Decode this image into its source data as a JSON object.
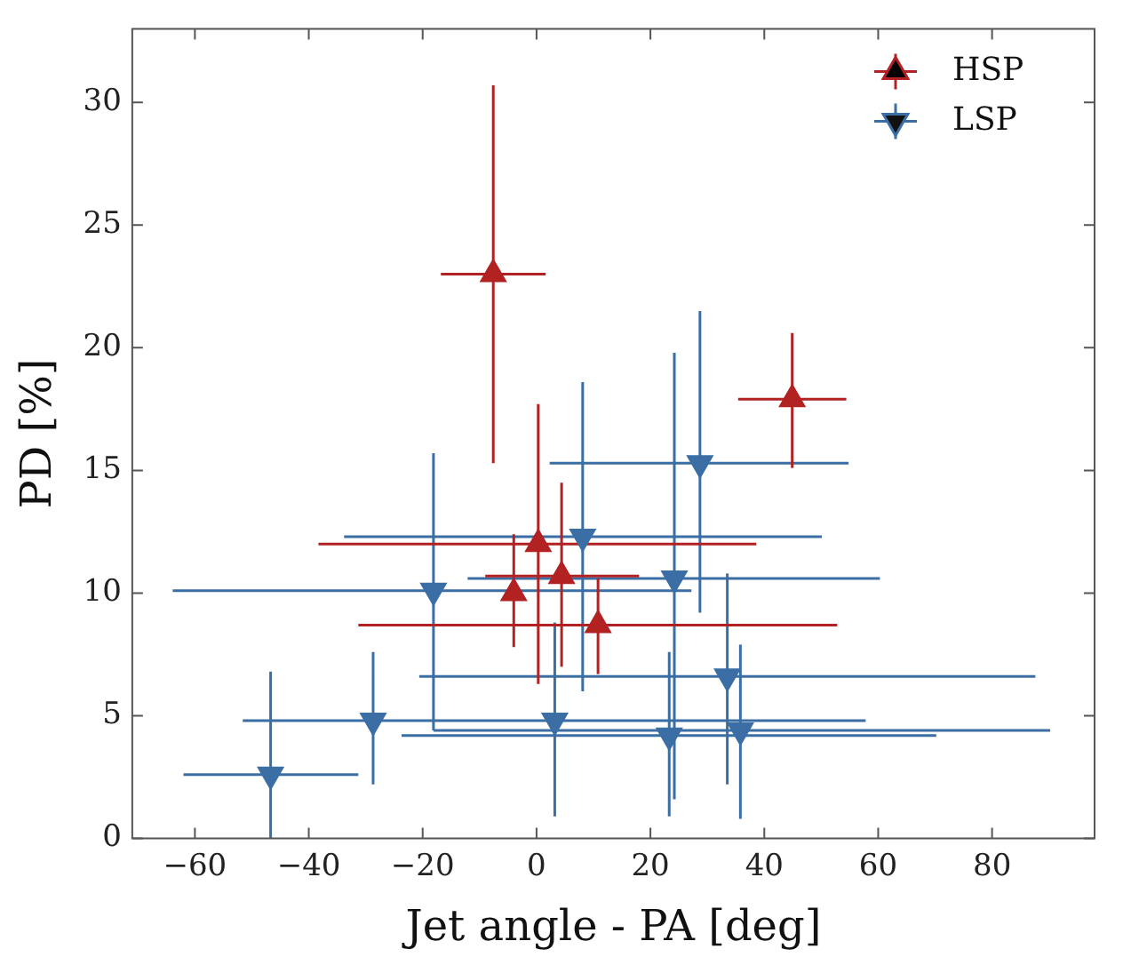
{
  "chart_data": {
    "type": "scatter",
    "xlabel": "Jet angle - PA [deg]",
    "ylabel": "PD [%]",
    "xlim": [
      -71,
      98
    ],
    "ylim": [
      0,
      33
    ],
    "xticks": [
      -60,
      -40,
      -20,
      0,
      20,
      40,
      60,
      80
    ],
    "yticks": [
      0,
      5,
      10,
      15,
      20,
      25,
      30
    ],
    "grid": false,
    "legend": "top right",
    "series": [
      {
        "name": "HSP",
        "color": "#b22222",
        "marker": "triangle",
        "x": [
          -7.6,
          44.9,
          0.3,
          4.4,
          -4.0,
          10.8
        ],
        "values": [
          23.0,
          17.9,
          12.0,
          10.7,
          10.0,
          8.7
        ],
        "errors": [
          [
            15.3,
            30.7
          ],
          [
            15.1,
            20.6
          ],
          [
            6.3,
            17.7
          ],
          [
            7.0,
            14.5
          ],
          [
            7.8,
            12.4
          ],
          [
            6.7,
            10.6
          ]
        ],
        "xerrors": [
          [
            -16.8,
            1.6
          ],
          [
            35.4,
            54.4
          ],
          [
            -38.3,
            38.6
          ],
          [
            -9.0,
            18.0
          ],
          null,
          [
            -31.3,
            52.8
          ]
        ]
      },
      {
        "name": "LSP",
        "color": "#3a6ea5",
        "marker": "triangle_down",
        "x": [
          -46.7,
          -28.7,
          -18.1,
          3.2,
          8.1,
          24.2,
          28.7,
          33.5,
          23.3,
          35.8
        ],
        "values": [
          2.6,
          4.8,
          10.1,
          4.8,
          12.3,
          10.6,
          15.3,
          6.6,
          4.2,
          4.4
        ],
        "errors": [
          [
            0,
            6.8
          ],
          [
            2.2,
            7.6
          ],
          [
            4.4,
            15.7
          ],
          [
            0.9,
            8.8
          ],
          [
            6.0,
            18.6
          ],
          [
            1.6,
            19.8
          ],
          [
            9.2,
            21.5
          ],
          [
            2.2,
            10.8
          ],
          [
            0.9,
            7.6
          ],
          [
            0.8,
            7.9
          ]
        ],
        "xerrors": [
          [
            -62.0,
            -31.3
          ],
          null,
          [
            -63.9,
            27.2
          ],
          [
            -51.6,
            57.8
          ],
          [
            -33.8,
            50.1
          ],
          [
            -12.1,
            60.3
          ],
          [
            2.3,
            54.8
          ],
          [
            -20.6,
            87.6
          ],
          [
            -23.7,
            70.2
          ],
          [
            -18.1,
            90.2
          ]
        ]
      }
    ]
  }
}
